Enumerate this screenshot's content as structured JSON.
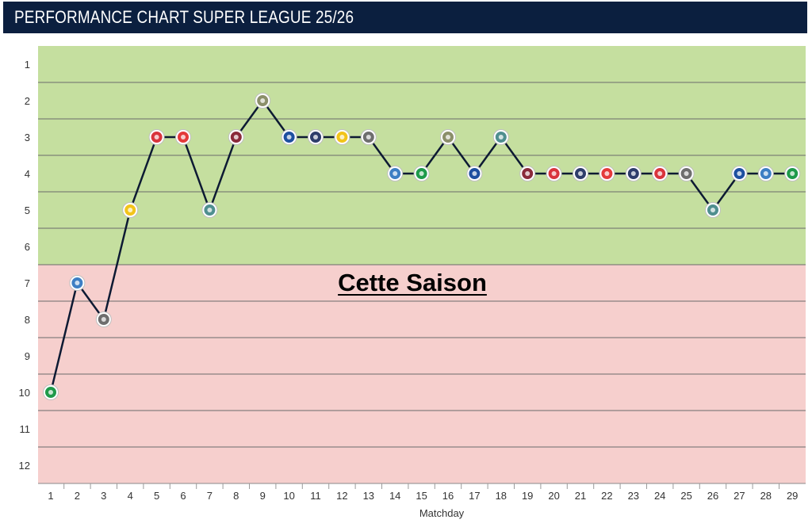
{
  "title": "PERFORMANCE CHART SUPER LEAGUE 25/26",
  "colors": {
    "header_bg": "#0b1f3f",
    "zone_top": "#c5df9f",
    "zone_bottom": "#f6cfcd",
    "line": "#0d1a33"
  },
  "chart_data": {
    "type": "line",
    "title": "PERFORMANCE CHART SUPER LEAGUE 25/26",
    "xlabel": "Matchday",
    "ylabel": "",
    "annotation": "Cette Saison",
    "x": [
      1,
      2,
      3,
      4,
      5,
      6,
      7,
      8,
      9,
      10,
      11,
      12,
      13,
      14,
      15,
      16,
      17,
      18,
      19,
      20,
      21,
      22,
      23,
      24,
      25,
      26,
      27,
      28,
      29
    ],
    "ylim": [
      1,
      12
    ],
    "y_inverted": true,
    "y_ticks": [
      1,
      2,
      3,
      4,
      5,
      6,
      7,
      8,
      9,
      10,
      11,
      12
    ],
    "zones": [
      {
        "from": 1,
        "to": 6,
        "color": "#c5df9f"
      },
      {
        "from": 7,
        "to": 12,
        "color": "#f6cfcd"
      }
    ],
    "series": [
      {
        "values": [
          10,
          7,
          8,
          5,
          3,
          3,
          5,
          3,
          2,
          3,
          3,
          3,
          3,
          4,
          4,
          3,
          4,
          3,
          4,
          4,
          4,
          4,
          4,
          4,
          4,
          5,
          4,
          4,
          4
        ],
        "opponent_logo_colors": [
          "#1e9a4a",
          "#3d7fc4",
          "#6e6e6e",
          "#f2c41a",
          "#d9343c",
          "#e43a3a",
          "#4f8f8f",
          "#8a2a3a",
          "#8b8f6a",
          "#1d4fa0",
          "#2e3d6b",
          "#f2c41a",
          "#6e6e6e",
          "#3d7fc4",
          "#1e9a4a",
          "#8b8f6a",
          "#1d4fa0",
          "#4f8f8f",
          "#8a2a3a",
          "#d9343c",
          "#2e3d6b",
          "#e43a3a",
          "#2e3d6b",
          "#d9343c",
          "#6e6e6e",
          "#4f8f8f",
          "#1d4fa0",
          "#3d7fc4",
          "#1e9a4a"
        ]
      }
    ],
    "grid": true
  }
}
